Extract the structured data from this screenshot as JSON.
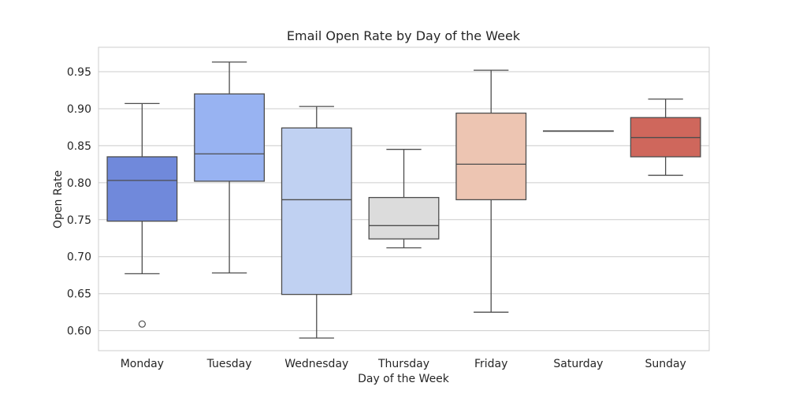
{
  "chart_data": {
    "type": "box",
    "title": "Email Open Rate by Day of the Week",
    "xlabel": "Day of the Week",
    "ylabel": "Open Rate",
    "ylim": [
      0.573,
      0.983
    ],
    "yticks": [
      "0.60",
      "0.65",
      "0.70",
      "0.75",
      "0.80",
      "0.85",
      "0.90",
      "0.95"
    ],
    "grid": true,
    "categories": [
      "Monday",
      "Tuesday",
      "Wednesday",
      "Thursday",
      "Friday",
      "Saturday",
      "Sunday"
    ],
    "boxes": [
      {
        "category": "Monday",
        "whisker_low": 0.677,
        "q1": 0.748,
        "median": 0.803,
        "q3": 0.835,
        "whisker_high": 0.907,
        "outliers": [
          0.609
        ],
        "color": "#7089db"
      },
      {
        "category": "Tuesday",
        "whisker_low": 0.678,
        "q1": 0.802,
        "median": 0.839,
        "q3": 0.92,
        "whisker_high": 0.963,
        "outliers": [],
        "color": "#98b3f2"
      },
      {
        "category": "Wednesday",
        "whisker_low": 0.59,
        "q1": 0.649,
        "median": 0.777,
        "q3": 0.874,
        "whisker_high": 0.903,
        "outliers": [],
        "color": "#c0d1f2"
      },
      {
        "category": "Thursday",
        "whisker_low": 0.712,
        "q1": 0.724,
        "median": 0.742,
        "q3": 0.78,
        "whisker_high": 0.845,
        "outliers": [],
        "color": "#dcdcdc"
      },
      {
        "category": "Friday",
        "whisker_low": 0.625,
        "q1": 0.777,
        "median": 0.825,
        "q3": 0.894,
        "whisker_high": 0.952,
        "outliers": [],
        "color": "#edc5b2"
      },
      {
        "category": "Saturday",
        "whisker_low": 0.87,
        "q1": 0.87,
        "median": 0.87,
        "q3": 0.87,
        "whisker_high": 0.87,
        "outliers": [],
        "color": "#ec9f86"
      },
      {
        "category": "Sunday",
        "whisker_low": 0.81,
        "q1": 0.835,
        "median": 0.861,
        "q3": 0.888,
        "whisker_high": 0.913,
        "outliers": [],
        "color": "#cf675c"
      }
    ]
  }
}
